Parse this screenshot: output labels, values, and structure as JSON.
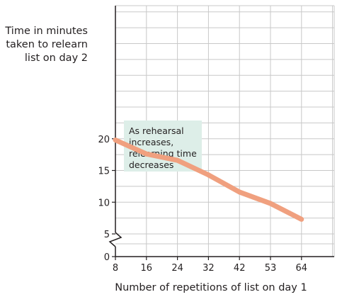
{
  "chart_data": {
    "type": "line",
    "title": "",
    "xlabel": "Number of repetitions of list on day 1",
    "ylabel_lines": [
      "Time in minutes",
      "taken to relearn",
      "list on day 2"
    ],
    "categories": [
      "8",
      "16",
      "24",
      "32",
      "42",
      "53",
      "64"
    ],
    "series": [
      {
        "values": [
          19.8,
          17.6,
          16.6,
          14.3,
          11.6,
          9.8,
          7.3
        ],
        "color": "#f0a07f"
      }
    ],
    "y_ticks": [
      "0",
      "5",
      "10",
      "15",
      "20"
    ],
    "y_tick_values": [
      0,
      5,
      10,
      15,
      20
    ],
    "y_axis_break": true,
    "ylim": [
      0,
      22.5
    ],
    "grid": true,
    "grid_color": "#c8c8c8",
    "annotation": {
      "lines": [
        "As rehearsal",
        "increases,",
        "relearning time",
        "decreases"
      ],
      "background": "#ddeee8"
    }
  }
}
